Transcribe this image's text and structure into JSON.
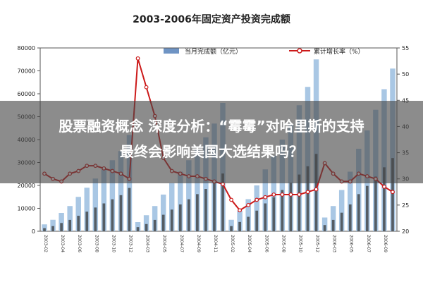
{
  "chart_data": {
    "type": "bar+line",
    "title": "2003-2006年固定资产投资完成额",
    "legend": {
      "placement": "top",
      "items": [
        "当月完成额（亿元）",
        "累计增长率（%）"
      ]
    },
    "y_left": {
      "min": 0,
      "max": 80000,
      "ticks": [
        "0",
        "10000",
        "20000",
        "30000",
        "40000",
        "50000",
        "60000",
        "70000",
        "80000"
      ]
    },
    "y_right": {
      "min": 20,
      "max": 55,
      "ticks": [
        "20",
        "25",
        "30",
        "35",
        "40",
        "45",
        "50",
        "55"
      ]
    },
    "x_tick_labels": [
      "2003-02",
      "2003-03",
      "2003-04",
      "2003-05",
      "2003-06",
      "2003-07",
      "2003-08",
      "2003-09",
      "2003-10",
      "2003-11",
      "2003-12",
      "2004-02",
      "2004-03",
      "2004-04",
      "2004-05",
      "2004-06",
      "2004-07",
      "2004-08",
      "2004-09",
      "2004-10",
      "2004-11",
      "2004-12",
      "2005-02",
      "2005-03",
      "2005-04",
      "2005-05",
      "2005-06",
      "2005-07",
      "2005-08",
      "2005-09",
      "2005-10",
      "2005-11",
      "2005-12",
      "2006-02",
      "2006-03",
      "2006-04",
      "2006-05",
      "2006-06",
      "2006-07",
      "2006-08",
      "2006-09",
      "2006-10"
    ],
    "series": [
      {
        "name": "当月完成额（亿元）",
        "kind": "bar",
        "values": [
          3000,
          5000,
          8000,
          11000,
          15000,
          19000,
          23000,
          27000,
          31000,
          35000,
          42000,
          4000,
          7000,
          11000,
          16000,
          21000,
          26000,
          31000,
          36000,
          41000,
          47000,
          56000,
          5000,
          9000,
          14000,
          20000,
          27000,
          33000,
          40000,
          47000,
          55000,
          63000,
          75000,
          6000,
          11000,
          18000,
          26000,
          36000,
          44000,
          53000,
          62000,
          71000
        ]
      },
      {
        "name": "累计增长率（%）",
        "kind": "line",
        "values": [
          31,
          30,
          29.5,
          31,
          31.5,
          32.5,
          32.5,
          32,
          31.5,
          31,
          30,
          53,
          47.5,
          42,
          34,
          31.5,
          31,
          30.5,
          30.5,
          30,
          29.5,
          29,
          26,
          24,
          25,
          26,
          26.5,
          27,
          27,
          27,
          27,
          27.5,
          28,
          33,
          31,
          29.5,
          29.5,
          31,
          30.5,
          30,
          28.5,
          27.5
        ]
      }
    ]
  },
  "overlay": {
    "line1": "股票融资概念 深度分析：“霉霉”对哈里斯的支持",
    "line2": "最终会影响美国大选结果吗？"
  },
  "colors": {
    "bar_light": "#a9c7e4",
    "bar_dark": "#3a3a3a",
    "line": "#cc1a1a",
    "banner": "#464646"
  }
}
